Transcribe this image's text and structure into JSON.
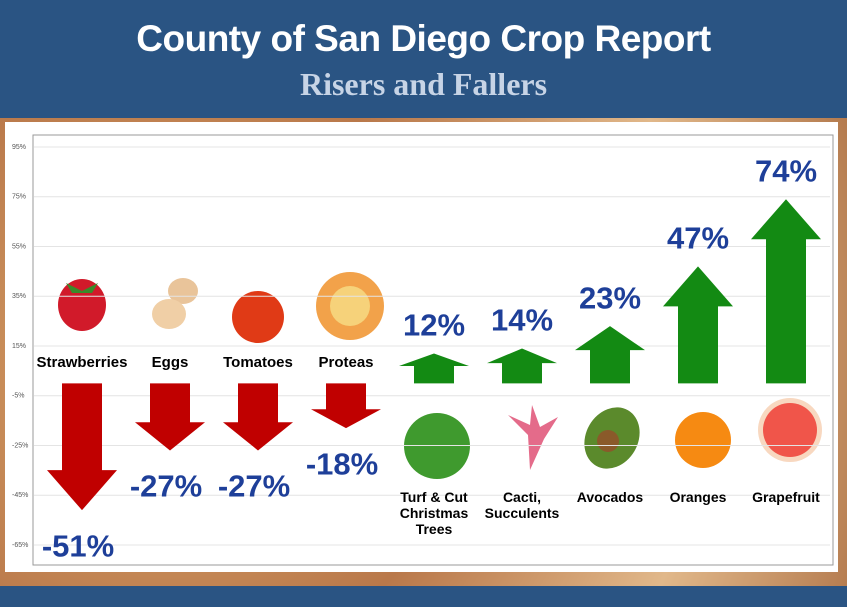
{
  "chart_data": {
    "type": "arrow",
    "title": "County of San Diego Crop Report",
    "subtitle": "Risers and Fallers",
    "categories": [
      "Strawberries",
      "Eggs",
      "Tomatoes",
      "Proteas",
      "Turf & Cut Christmas Trees",
      "Cacti, Succulents",
      "Avocados",
      "Oranges",
      "Grapefruit"
    ],
    "values": [
      -51,
      -27,
      -27,
      -18,
      12,
      14,
      23,
      47,
      74
    ],
    "value_labels": [
      "-51%",
      "-27%",
      "-27%",
      "-18%",
      "12%",
      "14%",
      "23%",
      "47%",
      "74%"
    ],
    "colors": [
      "#c00000",
      "#c00000",
      "#c00000",
      "#c00000",
      "#138a13",
      "#138a13",
      "#138a13",
      "#138a13",
      "#138a13"
    ],
    "ylim": [
      -65,
      95
    ],
    "yticks": [
      {
        "value": 95,
        "label": "95%"
      },
      {
        "value": 75,
        "label": "75%"
      },
      {
        "value": 55,
        "label": "55%"
      },
      {
        "value": 35,
        "label": "35%"
      },
      {
        "value": 15,
        "label": "15%"
      },
      {
        "value": -5,
        "label": "-5%"
      },
      {
        "value": -25,
        "label": "-25%"
      },
      {
        "value": -45,
        "label": "-45%"
      },
      {
        "value": -65,
        "label": "-65%"
      }
    ],
    "grid": true
  }
}
